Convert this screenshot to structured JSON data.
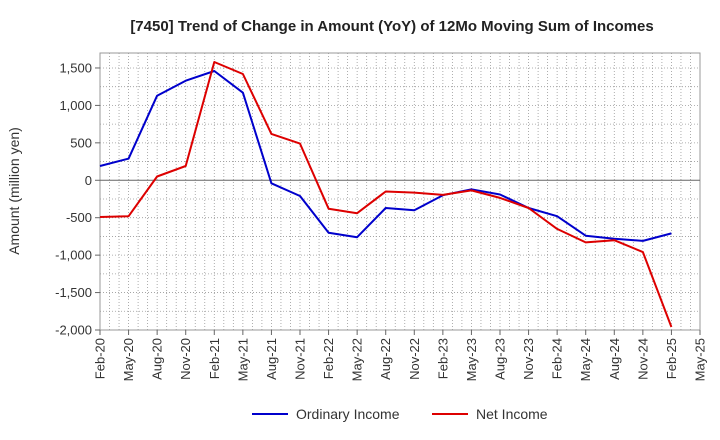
{
  "chart_data": {
    "type": "line",
    "title": "[7450]  Trend of Change in Amount (YoY) of 12Mo Moving Sum of Incomes",
    "xlabel": "",
    "ylabel": "Amount (million yen)",
    "ylim": [
      -2000,
      1700
    ],
    "yticks": [
      1500,
      1000,
      500,
      0,
      -500,
      -1000,
      -1500,
      -2000
    ],
    "ytick_labels": [
      "1,500",
      "1,000",
      "500",
      "0",
      "-500",
      "-1,000",
      "-1,500",
      "-2,000"
    ],
    "x_tick_labels": [
      "Feb-20",
      "May-20",
      "Aug-20",
      "Nov-20",
      "Feb-21",
      "May-21",
      "Aug-21",
      "Nov-21",
      "Feb-22",
      "May-22",
      "Aug-22",
      "Nov-22",
      "Feb-23",
      "May-23",
      "Aug-23",
      "Nov-23",
      "Feb-24",
      "May-24",
      "Aug-24",
      "Nov-24",
      "Feb-25",
      "May-25"
    ],
    "categories": [
      "Feb-20",
      "May-20",
      "Aug-20",
      "Nov-20",
      "Feb-21",
      "May-21",
      "Aug-21",
      "Nov-21",
      "Feb-22",
      "May-22",
      "Aug-22",
      "Nov-22",
      "Feb-23",
      "May-23",
      "Aug-23",
      "Nov-23",
      "Feb-24",
      "May-24",
      "Aug-24",
      "Nov-24",
      "Feb-25"
    ],
    "series": [
      {
        "name": "Ordinary Income",
        "color": "#0000cc",
        "values": [
          190,
          290,
          1130,
          1330,
          1460,
          1170,
          -40,
          -210,
          -700,
          -760,
          -370,
          -400,
          -200,
          -120,
          -190,
          -370,
          -480,
          -740,
          -780,
          -810,
          -710
        ]
      },
      {
        "name": "Net Income",
        "color": "#dd0000",
        "values": [
          -490,
          -480,
          50,
          190,
          1580,
          1420,
          620,
          490,
          -380,
          -440,
          -150,
          -165,
          -195,
          -135,
          -235,
          -370,
          -650,
          -830,
          -800,
          -960,
          -1960
        ]
      }
    ],
    "grid": true,
    "legend_position": "bottom"
  }
}
